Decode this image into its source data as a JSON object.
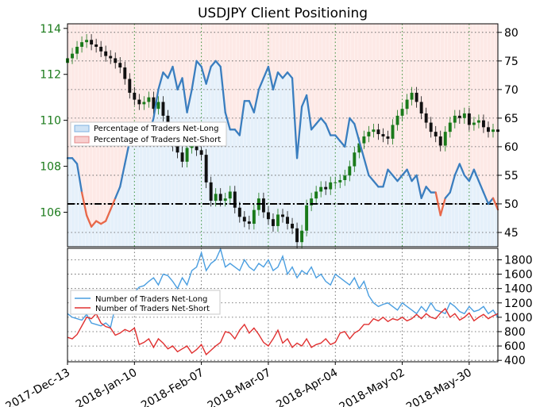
{
  "chart_data": [
    {
      "type": "line",
      "title": "USDJPY Client Positioning",
      "x_tick_labels": [
        "2017-Dec-13",
        "2018-Jan-10",
        "2018-Feb-07",
        "2018-Mar-07",
        "2018-Apr-04",
        "2018-May-02",
        "2018-May-30"
      ],
      "left_axis": {
        "ticks": [
          106,
          108,
          110,
          112,
          114
        ],
        "ylim": [
          104.5,
          114.2
        ],
        "color": "#1a7a1a"
      },
      "right_axis": {
        "ticks": [
          45,
          50,
          55,
          60,
          65,
          70,
          75,
          80
        ],
        "ylim": [
          42.5,
          81.5
        ]
      },
      "reference_line": {
        "value": 50,
        "style": "dash-dot",
        "color": "#000000"
      },
      "legend": {
        "placement": "upper-left",
        "entries": [
          "Percentage of Traders Net-Long",
          "Percentage of Traders Net-Short"
        ]
      },
      "series": [
        {
          "name": "Percentage of Traders Net-Long",
          "axis": "right",
          "color": "#3a7ebf",
          "x": [
            0,
            2,
            4,
            6,
            8,
            10,
            12,
            14,
            16,
            18,
            20,
            22,
            24,
            26,
            28,
            30,
            32,
            34,
            36,
            38,
            40,
            42,
            44,
            46,
            48,
            50,
            52,
            54,
            56,
            58,
            60,
            62,
            64,
            66,
            68,
            70,
            72,
            74,
            76,
            78,
            80,
            82,
            84,
            86,
            88,
            90,
            92,
            94,
            96,
            98,
            100,
            102,
            104,
            106,
            108,
            110,
            112,
            114,
            116,
            118,
            120,
            122,
            124,
            126,
            128,
            130,
            132,
            134,
            136,
            138,
            140,
            142,
            144,
            146,
            148,
            150,
            152,
            154,
            156,
            158,
            160,
            162,
            164,
            166,
            168,
            170,
            172,
            174,
            176,
            178,
            180
          ],
          "values": [
            58,
            58,
            57,
            52,
            48,
            46,
            47,
            46.5,
            47,
            49,
            51,
            53,
            57,
            61,
            64,
            63,
            64,
            62,
            65,
            70,
            73,
            72,
            74,
            70,
            72,
            66,
            70,
            75,
            74,
            71,
            74,
            75,
            74,
            66,
            63,
            63,
            62,
            68,
            68,
            66,
            70,
            72,
            74,
            70,
            73,
            72,
            73,
            72,
            58,
            67,
            69,
            63,
            64,
            65,
            64,
            62,
            62,
            61,
            60,
            65,
            64,
            61,
            58,
            55,
            54,
            53,
            53,
            56,
            55,
            54,
            55,
            56,
            54,
            55,
            51,
            53,
            52,
            52,
            48,
            51,
            52,
            55,
            57,
            55,
            54,
            56,
            54,
            52,
            50,
            51,
            49
          ],
          "below_50_color": "#e8684a"
        },
        {
          "name": "USDJPY price (candlesticks)",
          "axis": "left",
          "color_up": "#1a7a1a",
          "color_down": "#111111",
          "x": [
            0,
            2,
            4,
            6,
            8,
            10,
            12,
            14,
            16,
            18,
            20,
            22,
            24,
            26,
            28,
            30,
            32,
            34,
            36,
            38,
            40,
            42,
            44,
            46,
            48,
            50,
            52,
            54,
            56,
            58,
            60,
            62,
            64,
            66,
            68,
            70,
            72,
            74,
            76,
            78,
            80,
            82,
            84,
            86,
            88,
            90,
            92,
            94,
            96,
            98,
            100,
            102,
            104,
            106,
            108,
            110,
            112,
            114,
            116,
            118,
            120,
            122,
            124,
            126,
            128,
            130,
            132,
            134,
            136,
            138,
            140,
            142,
            144,
            146,
            148,
            150,
            152,
            154,
            156,
            158,
            160,
            162,
            164,
            166,
            168,
            170,
            172,
            174,
            176,
            178,
            180
          ],
          "values": [
            112.7,
            112.9,
            113.2,
            113.4,
            113.5,
            113.3,
            113.2,
            113.0,
            112.8,
            112.7,
            112.5,
            112.3,
            111.8,
            111.2,
            110.9,
            110.7,
            110.8,
            111.0,
            110.5,
            110.8,
            110.2,
            109.3,
            108.9,
            108.6,
            108.2,
            108.8,
            109.1,
            108.7,
            108.5,
            107.3,
            106.5,
            106.8,
            106.5,
            106.6,
            106.9,
            106.2,
            105.8,
            105.6,
            105.5,
            106.1,
            106.6,
            106.0,
            105.7,
            105.4,
            105.9,
            105.8,
            105.5,
            105.3,
            104.7,
            105.2,
            106.3,
            106.6,
            106.9,
            107.1,
            107.0,
            107.3,
            107.3,
            107.4,
            107.6,
            108.0,
            108.6,
            109.0,
            109.3,
            109.5,
            109.6,
            109.4,
            109.3,
            109.2,
            109.8,
            110.2,
            110.5,
            110.9,
            111.2,
            110.8,
            110.3,
            109.9,
            109.5,
            109.3,
            108.9,
            109.5,
            109.9,
            110.2,
            110.1,
            110.3,
            109.8,
            109.9,
            110.0,
            109.7,
            109.5,
            109.6,
            109.5
          ]
        }
      ]
    },
    {
      "type": "line",
      "right_axis": {
        "ticks": [
          400,
          600,
          800,
          1000,
          1200,
          1400,
          1600,
          1800
        ],
        "ylim": [
          380,
          1960
        ]
      },
      "legend": {
        "placement": "center-left",
        "entries": [
          "Number of Traders Net-Long",
          "Number of Traders Net-Short"
        ]
      },
      "series": [
        {
          "name": "Number of Traders Net-Long",
          "color": "#4a9ee0",
          "x": [
            0,
            2,
            4,
            6,
            8,
            10,
            12,
            14,
            16,
            18,
            20,
            22,
            24,
            26,
            28,
            30,
            32,
            34,
            36,
            38,
            40,
            42,
            44,
            46,
            48,
            50,
            52,
            54,
            56,
            58,
            60,
            62,
            64,
            66,
            68,
            70,
            72,
            74,
            76,
            78,
            80,
            82,
            84,
            86,
            88,
            90,
            92,
            94,
            96,
            98,
            100,
            102,
            104,
            106,
            108,
            110,
            112,
            114,
            116,
            118,
            120,
            122,
            124,
            126,
            128,
            130,
            132,
            134,
            136,
            138,
            140,
            142,
            144,
            146,
            148,
            150,
            152,
            154,
            156,
            158,
            160,
            162,
            164,
            166,
            168,
            170,
            172,
            174,
            176,
            178,
            180
          ],
          "values": [
            1050,
            1000,
            980,
            960,
            1040,
            920,
            900,
            880,
            920,
            860,
            1150,
            1200,
            1300,
            1250,
            1350,
            1420,
            1440,
            1500,
            1550,
            1450,
            1600,
            1580,
            1500,
            1400,
            1550,
            1450,
            1650,
            1700,
            1900,
            1650,
            1750,
            1800,
            1950,
            1700,
            1750,
            1700,
            1650,
            1800,
            1700,
            1650,
            1750,
            1700,
            1800,
            1650,
            1700,
            1850,
            1600,
            1700,
            1550,
            1650,
            1600,
            1700,
            1550,
            1600,
            1500,
            1450,
            1600,
            1550,
            1500,
            1450,
            1550,
            1400,
            1500,
            1300,
            1200,
            1150,
            1180,
            1200,
            1150,
            1100,
            1200,
            1150,
            1100,
            1050,
            1150,
            1080,
            1200,
            1100,
            1080,
            1050,
            1200,
            1150,
            1080,
            1050,
            1150,
            1080,
            1100,
            1150,
            1050,
            1100,
            1000
          ],
          "placeholder_note": ""
        },
        {
          "name": "Number of Traders Net-Short",
          "color": "#e03030",
          "x": [
            0,
            2,
            4,
            6,
            8,
            10,
            12,
            14,
            16,
            18,
            20,
            22,
            24,
            26,
            28,
            30,
            32,
            34,
            36,
            38,
            40,
            42,
            44,
            46,
            48,
            50,
            52,
            54,
            56,
            58,
            60,
            62,
            64,
            66,
            68,
            70,
            72,
            74,
            76,
            78,
            80,
            82,
            84,
            86,
            88,
            90,
            92,
            94,
            96,
            98,
            100,
            102,
            104,
            106,
            108,
            110,
            112,
            114,
            116,
            118,
            120,
            122,
            124,
            126,
            128,
            130,
            132,
            134,
            136,
            138,
            140,
            142,
            144,
            146,
            148,
            150,
            152,
            154,
            156,
            158,
            160,
            162,
            164,
            166,
            168,
            170,
            172,
            174,
            176,
            178,
            180
          ],
          "values": [
            720,
            700,
            760,
            880,
            1000,
            980,
            1050,
            920,
            870,
            850,
            750,
            780,
            830,
            800,
            850,
            620,
            650,
            700,
            580,
            700,
            640,
            560,
            600,
            520,
            560,
            600,
            500,
            550,
            620,
            480,
            540,
            600,
            650,
            800,
            780,
            700,
            820,
            900,
            780,
            850,
            760,
            650,
            600,
            700,
            820,
            640,
            700,
            580,
            640,
            600,
            700,
            580,
            620,
            640,
            700,
            620,
            650,
            780,
            800,
            700,
            780,
            820,
            900,
            900,
            980,
            950,
            1000,
            940,
            980,
            960,
            1000,
            950,
            980,
            1040,
            980,
            1050,
            1000,
            980,
            1060,
            1120,
            1000,
            1050,
            960,
            1000,
            1060,
            950,
            1000,
            1040,
            980,
            1020,
            1050
          ]
        }
      ]
    }
  ]
}
